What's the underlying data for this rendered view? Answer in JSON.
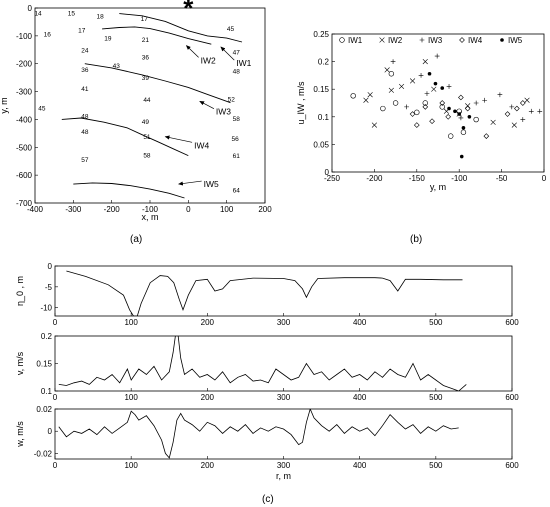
{
  "panel_labels": {
    "a": "(a)",
    "b": "(b)",
    "c": "(c)"
  },
  "chart_data": [
    {
      "id": "a",
      "type": "line",
      "xlabel": "x, m",
      "ylabel": "y, m",
      "xlim": [
        -400,
        200
      ],
      "ylim": [
        -700,
        0
      ],
      "xticks": [
        -400,
        -300,
        -200,
        -100,
        0,
        100,
        200
      ],
      "yticks": [
        0,
        -100,
        -200,
        -300,
        -400,
        -500,
        -600,
        -700
      ],
      "marker": {
        "symbol": "*",
        "x": 0,
        "y": 0
      },
      "station_labels": [
        {
          "t": "14",
          "x": -392,
          "y": -20
        },
        {
          "t": "15",
          "x": -305,
          "y": -20
        },
        {
          "t": "18",
          "x": -230,
          "y": -30
        },
        {
          "t": "17",
          "x": -115,
          "y": -40
        },
        {
          "t": "16",
          "x": -368,
          "y": -95
        },
        {
          "t": "17",
          "x": -278,
          "y": -80
        },
        {
          "t": "19",
          "x": -210,
          "y": -110
        },
        {
          "t": "21",
          "x": -112,
          "y": -115
        },
        {
          "t": "45",
          "x": 110,
          "y": -75
        },
        {
          "t": "47",
          "x": 125,
          "y": -160
        },
        {
          "t": "24",
          "x": -270,
          "y": -152
        },
        {
          "t": "36",
          "x": -112,
          "y": -178
        },
        {
          "t": "43",
          "x": -188,
          "y": -208
        },
        {
          "t": "48",
          "x": 125,
          "y": -228
        },
        {
          "t": "36",
          "x": -270,
          "y": -222
        },
        {
          "t": "39",
          "x": -112,
          "y": -252
        },
        {
          "t": "41",
          "x": -270,
          "y": -290
        },
        {
          "t": "44",
          "x": -108,
          "y": -330
        },
        {
          "t": "52",
          "x": 112,
          "y": -328
        },
        {
          "t": "45",
          "x": -382,
          "y": -360
        },
        {
          "t": "49",
          "x": -112,
          "y": -410
        },
        {
          "t": "48",
          "x": -270,
          "y": -390
        },
        {
          "t": "58",
          "x": 125,
          "y": -398
        },
        {
          "t": "51",
          "x": -108,
          "y": -463
        },
        {
          "t": "56",
          "x": 122,
          "y": -470
        },
        {
          "t": "48",
          "x": -270,
          "y": -445
        },
        {
          "t": "58",
          "x": -108,
          "y": -530
        },
        {
          "t": "61",
          "x": 125,
          "y": -532
        },
        {
          "t": "57",
          "x": -270,
          "y": -545
        },
        {
          "t": "64",
          "x": 125,
          "y": -655
        }
      ],
      "series": [
        {
          "name": "IW1",
          "x": [
            -180,
            -120,
            -60,
            0,
            50,
            100,
            140
          ],
          "y": [
            -20,
            -28,
            -48,
            -82,
            -100,
            -108,
            -122
          ]
        },
        {
          "name": "IW2",
          "x": [
            -225,
            -180,
            -140,
            -100,
            -50,
            0,
            60
          ],
          "y": [
            -75,
            -70,
            -68,
            -74,
            -90,
            -110,
            -130
          ]
        },
        {
          "name": "IW3",
          "x": [
            -270,
            -200,
            -120,
            -60,
            0,
            50,
            110
          ],
          "y": [
            -200,
            -215,
            -240,
            -262,
            -285,
            -310,
            -340
          ]
        },
        {
          "name": "IW4",
          "x": [
            -330,
            -280,
            -220,
            -160,
            -120,
            -80,
            -40,
            0
          ],
          "y": [
            -400,
            -395,
            -410,
            -430,
            -455,
            -480,
            -505,
            -530
          ]
        },
        {
          "name": "IW5",
          "x": [
            -300,
            -250,
            -200,
            -150,
            -100,
            -50,
            -10
          ],
          "y": [
            -632,
            -628,
            -630,
            -638,
            -650,
            -665,
            -682
          ]
        }
      ],
      "annotations": [
        {
          "text": "IW1",
          "x": 125,
          "y": -198,
          "ax": 85,
          "ay": -140
        },
        {
          "text": "IW2",
          "x": 32,
          "y": -188,
          "ax": -5,
          "ay": -135
        },
        {
          "text": "IW3",
          "x": 72,
          "y": -372,
          "ax": 30,
          "ay": -335
        },
        {
          "text": "IW4",
          "x": 15,
          "y": -493,
          "ax": -60,
          "ay": -462
        },
        {
          "text": "IW5",
          "x": 40,
          "y": -632,
          "ax": -25,
          "ay": -632
        }
      ]
    },
    {
      "id": "b",
      "type": "scatter",
      "xlabel": "y, m",
      "ylabel": "u_IW , m/s",
      "xlim": [
        -250,
        0
      ],
      "ylim": [
        0,
        0.25
      ],
      "xticks": [
        -250,
        -200,
        -150,
        -100,
        -50,
        0
      ],
      "yticks": [
        0,
        0.05,
        0.1,
        0.15,
        0.2,
        0.25
      ],
      "legend": "top",
      "series": [
        {
          "name": "IW1",
          "marker": "circle",
          "x": [
            -225,
            -190,
            -175,
            -180,
            -150,
            -140,
            -110,
            -100,
            -95,
            -120,
            -80
          ],
          "y": [
            0.138,
            0.115,
            0.125,
            0.178,
            0.108,
            0.125,
            0.065,
            0.11,
            0.072,
            0.118,
            0.095
          ]
        },
        {
          "name": "IW2",
          "marker": "x",
          "x": [
            -210,
            -205,
            -200,
            -185,
            -180,
            -168,
            -155,
            -140,
            -130,
            -115,
            -100,
            -90,
            -60,
            -35,
            -20
          ],
          "y": [
            0.13,
            0.14,
            0.085,
            0.185,
            0.148,
            0.155,
            0.165,
            0.2,
            0.15,
            0.11,
            0.105,
            0.12,
            0.09,
            0.085,
            0.13
          ]
        },
        {
          "name": "IW3",
          "marker": "plus",
          "x": [
            -178,
            -162,
            -145,
            -138,
            -126,
            -112,
            -98,
            -80,
            -70,
            -52,
            -38,
            -25,
            -15,
            -5
          ],
          "y": [
            0.2,
            0.118,
            0.175,
            0.142,
            0.21,
            0.155,
            0.098,
            0.125,
            0.13,
            0.14,
            0.118,
            0.095,
            0.11,
            0.11
          ]
        },
        {
          "name": "IW4",
          "marker": "diamond",
          "x": [
            -155,
            -150,
            -140,
            -132,
            -120,
            -113,
            -98,
            -90,
            -68,
            -43,
            -32,
            -25
          ],
          "y": [
            0.105,
            0.085,
            0.118,
            0.092,
            0.125,
            0.1,
            0.135,
            0.115,
            0.065,
            0.105,
            0.115,
            0.125
          ]
        },
        {
          "name": "IW5",
          "marker": "dot",
          "x": [
            -135,
            -128,
            -120,
            -112,
            -105,
            -100,
            -95,
            -97,
            -88
          ],
          "y": [
            0.178,
            0.16,
            0.152,
            0.115,
            0.11,
            0.105,
            0.08,
            0.028,
            0.1
          ]
        }
      ]
    },
    {
      "id": "c1",
      "type": "line",
      "ylabel": "η_0 , m",
      "xlim": [
        0,
        600
      ],
      "ylim": [
        -12,
        0
      ],
      "xticks": [
        0,
        100,
        200,
        300,
        400,
        500,
        600
      ],
      "yticks": [
        0,
        -5,
        -10
      ],
      "series": [
        {
          "x": [
            15,
            40,
            70,
            90,
            98,
            103,
            108,
            113,
            125,
            138,
            148,
            156,
            163,
            168,
            175,
            185,
            200,
            210,
            220,
            230,
            260,
            300,
            315,
            325,
            330,
            337,
            345,
            380,
            420,
            430,
            440,
            450,
            460,
            480,
            510,
            535
          ],
          "y": [
            -1.2,
            -2.5,
            -4.5,
            -7,
            -10.5,
            -12,
            -12,
            -9,
            -4,
            -2.3,
            -2.5,
            -4,
            -8,
            -10.5,
            -7,
            -3.5,
            -3.2,
            -6,
            -5.5,
            -3.5,
            -2.9,
            -3,
            -3.5,
            -5.5,
            -7.5,
            -5,
            -3,
            -2.8,
            -2.8,
            -2.9,
            -3.5,
            -6,
            -3.2,
            -3.2,
            -3.3,
            -3.3
          ]
        }
      ]
    },
    {
      "id": "c2",
      "type": "line",
      "ylabel": "v, m/s",
      "xlim": [
        0,
        600
      ],
      "ylim": [
        0.1,
        0.2
      ],
      "xticks": [
        0,
        100,
        200,
        300,
        400,
        500,
        600
      ],
      "yticks": [
        0.1,
        0.15,
        0.2
      ],
      "series": [
        {
          "x": [
            5,
            15,
            25,
            35,
            45,
            55,
            65,
            75,
            85,
            95,
            100,
            110,
            120,
            130,
            140,
            150,
            155,
            160,
            165,
            170,
            180,
            190,
            200,
            210,
            220,
            230,
            240,
            250,
            260,
            270,
            280,
            290,
            300,
            310,
            320,
            330,
            340,
            350,
            360,
            370,
            380,
            390,
            400,
            410,
            420,
            430,
            440,
            450,
            460,
            470,
            480,
            490,
            500,
            510,
            520,
            530,
            540
          ],
          "y": [
            0.112,
            0.11,
            0.115,
            0.118,
            0.112,
            0.125,
            0.12,
            0.13,
            0.115,
            0.14,
            0.12,
            0.14,
            0.13,
            0.145,
            0.12,
            0.135,
            0.17,
            0.22,
            0.16,
            0.13,
            0.14,
            0.125,
            0.13,
            0.12,
            0.135,
            0.115,
            0.125,
            0.13,
            0.118,
            0.12,
            0.115,
            0.14,
            0.13,
            0.12,
            0.125,
            0.15,
            0.13,
            0.135,
            0.12,
            0.13,
            0.14,
            0.125,
            0.13,
            0.12,
            0.135,
            0.125,
            0.14,
            0.13,
            0.125,
            0.15,
            0.12,
            0.13,
            0.12,
            0.11,
            0.105,
            0.1,
            0.112
          ]
        }
      ]
    },
    {
      "id": "c3",
      "type": "line",
      "xlabel": "r, m",
      "ylabel": "w, m/s",
      "xlim": [
        0,
        600
      ],
      "ylim": [
        -0.025,
        0.02
      ],
      "xticks": [
        0,
        100,
        200,
        300,
        400,
        500,
        600
      ],
      "yticks": [
        0.02,
        0,
        -0.02
      ],
      "series": [
        {
          "x": [
            5,
            15,
            25,
            35,
            45,
            55,
            65,
            75,
            85,
            95,
            100,
            105,
            110,
            120,
            130,
            140,
            145,
            150,
            155,
            160,
            165,
            170,
            180,
            190,
            200,
            210,
            220,
            230,
            240,
            250,
            260,
            270,
            280,
            290,
            300,
            310,
            320,
            325,
            330,
            335,
            340,
            350,
            360,
            370,
            380,
            390,
            400,
            410,
            420,
            430,
            440,
            450,
            460,
            470,
            480,
            490,
            500,
            510,
            520,
            530
          ],
          "y": [
            0.004,
            -0.005,
            0,
            -0.002,
            0.002,
            -0.003,
            0.004,
            -0.002,
            0.003,
            0.008,
            0.018,
            0.015,
            0.01,
            0.014,
            0.005,
            -0.008,
            -0.02,
            -0.024,
            -0.01,
            0.01,
            0.016,
            0.01,
            0.006,
            0.0,
            0.008,
            0.005,
            -0.002,
            0.004,
            0.0,
            0.006,
            -0.002,
            0.003,
            0.0,
            0.004,
            0.002,
            -0.003,
            -0.012,
            -0.01,
            0.008,
            0.02,
            0.012,
            0.005,
            0.0,
            0.006,
            -0.002,
            0.004,
            0.0,
            0.003,
            -0.004,
            0.005,
            0.015,
            0.008,
            0.002,
            0.006,
            -0.002,
            0.004,
            0.0,
            0.005,
            0.002,
            0.003
          ]
        }
      ]
    }
  ]
}
